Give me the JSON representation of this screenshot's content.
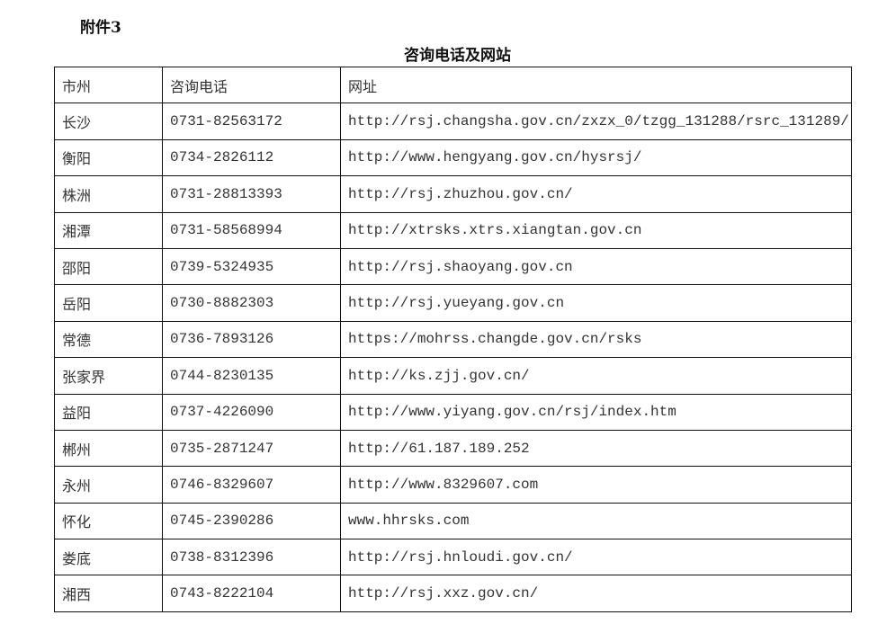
{
  "annex_label": "附件3",
  "title": "咨询电话及网站",
  "table": {
    "headers": [
      "市州",
      "咨询电话",
      "网址"
    ],
    "rows": [
      [
        "长沙",
        "0731-82563172",
        "http://rsj.changsha.gov.cn/zxzx_0/tzgg_131288/rsrc_131289/"
      ],
      [
        "衡阳",
        "0734-2826112",
        "http://www.hengyang.gov.cn/hysrsj/"
      ],
      [
        "株洲",
        "0731-28813393",
        "http://rsj.zhuzhou.gov.cn/"
      ],
      [
        "湘潭",
        "0731-58568994",
        "http://xtrsks.xtrs.xiangtan.gov.cn"
      ],
      [
        "邵阳",
        "0739-5324935",
        "http://rsj.shaoyang.gov.cn"
      ],
      [
        "岳阳",
        "0730-8882303",
        "http://rsj.yueyang.gov.cn"
      ],
      [
        "常德",
        "0736-7893126",
        "https://mohrss.changde.gov.cn/rsks"
      ],
      [
        "张家界",
        "0744-8230135",
        "http://ks.zjj.gov.cn/"
      ],
      [
        "益阳",
        "0737-4226090",
        "http://www.yiyang.gov.cn/rsj/index.htm"
      ],
      [
        "郴州",
        "0735-2871247",
        "http://61.187.189.252"
      ],
      [
        "永州",
        "0746-8329607",
        "http://www.8329607.com"
      ],
      [
        "怀化",
        "0745-2390286",
        "www.hhrsks.com"
      ],
      [
        "娄底",
        "0738-8312396",
        "http://rsj.hnloudi.gov.cn/"
      ],
      [
        "湘西",
        "0743-8222104",
        "http://rsj.xxz.gov.cn/"
      ]
    ]
  }
}
